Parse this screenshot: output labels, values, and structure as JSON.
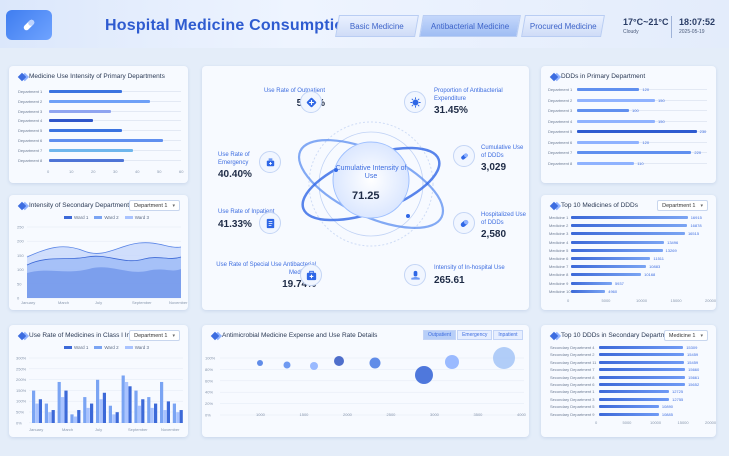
{
  "header": {
    "title": "Hospital Medicine Consumption",
    "tabs": [
      {
        "label": "Basic Medicine"
      },
      {
        "label": "Antibacterial Medicine"
      },
      {
        "label": "Procured Medicine"
      }
    ],
    "weather": {
      "temp": "17°C~21°C",
      "cond": "Cloudy"
    },
    "clock": {
      "time": "18:07:52",
      "date": "2025-05-19"
    }
  },
  "primary": {
    "title": "Medicine Use Intensity of Primary Departments",
    "rows": [
      {
        "label": "Department 1",
        "value": 33
      },
      {
        "label": "Department 2",
        "value": 46
      },
      {
        "label": "Department 3",
        "value": 28
      },
      {
        "label": "Department 4",
        "value": 20
      },
      {
        "label": "Department 5",
        "value": 33
      },
      {
        "label": "Department 6",
        "value": 52
      },
      {
        "label": "Department 7",
        "value": 38
      },
      {
        "label": "Department 8",
        "value": 34
      }
    ],
    "ticks": [
      "0",
      "10",
      "20",
      "30",
      "40",
      "50",
      "60"
    ],
    "colors": [
      "#3a73e0",
      "#6ea0f7",
      "#8fa4f0",
      "#2e55c9",
      "#3a73e0",
      "#5f8fef",
      "#6eb6ec",
      "#4d74d6"
    ]
  },
  "secondary": {
    "title": "Intensity of Secondary Departments",
    "select": "Department 1",
    "legend": [
      "Ward 1",
      "Ward 2",
      "Ward 3"
    ],
    "yticks": [
      "250",
      "200",
      "150",
      "100",
      "50",
      "0"
    ],
    "xticks": [
      "January",
      "March",
      "July",
      "September",
      "November"
    ]
  },
  "classI": {
    "title": "Use Rate of Medicines in Class I Incision",
    "select": "Department 1",
    "legend": [
      "Ward 1",
      "Ward 2",
      "Ward 3"
    ],
    "yticks": [
      "300%",
      "250%",
      "200%",
      "150%",
      "100%",
      "50%",
      "0%"
    ],
    "xticks": [
      "January",
      "March",
      "July",
      "September",
      "November"
    ]
  },
  "antimicrobial": {
    "title": "Antimicrobial Medicine Expense and Use Rate Details",
    "tabs": [
      "Outpatient",
      "Emergency",
      "Inpatient"
    ],
    "yticks": [
      "100%",
      "80%",
      "60%",
      "40%",
      "20%",
      "0%"
    ],
    "xticks": [
      "1000",
      "1500",
      "2000",
      "2500",
      "3000",
      "3500",
      "4000"
    ]
  },
  "ddds": {
    "title": "DDDs in Primary Department",
    "rows": [
      {
        "label": "Department 1",
        "value": 120
      },
      {
        "label": "Department 2",
        "value": 150
      },
      {
        "label": "Department 3",
        "value": 100
      },
      {
        "label": "Department 4",
        "value": 150
      },
      {
        "label": "Department 5",
        "value": 230
      },
      {
        "label": "Department 6",
        "value": 120
      },
      {
        "label": "Department 7",
        "value": 220
      },
      {
        "label": "Department 8",
        "value": 110
      }
    ]
  },
  "top10": {
    "title": "Top 10 Medicines of DDDs",
    "select": "Department 1",
    "rows": [
      {
        "label": "Medicine 1",
        "value": "16915"
      },
      {
        "label": "Medicine 2",
        "value": "16878"
      },
      {
        "label": "Medicine 3",
        "value": "16515"
      },
      {
        "label": "Medicine 4",
        "value": "13496"
      },
      {
        "label": "Medicine 5",
        "value": "13269"
      },
      {
        "label": "Medicine 6",
        "value": "11511"
      },
      {
        "label": "Medicine 7",
        "value": "10883"
      },
      {
        "label": "Medicine 8",
        "value": "10168"
      },
      {
        "label": "Medicine 9",
        "value": "5937"
      },
      {
        "label": "Medicine 10",
        "value": "4960"
      }
    ],
    "ticks": [
      "0",
      "5000",
      "10000",
      "15000",
      "20000"
    ]
  },
  "top10sec": {
    "title": "Top 10 DDDs in Secondary Departments",
    "select": "Medicine 1",
    "rows": [
      {
        "label": "Secondary Department 4",
        "value": "15309"
      },
      {
        "label": "Secondary Department 2",
        "value": "15459"
      },
      {
        "label": "Secondary Department 11",
        "value": "15459"
      },
      {
        "label": "Secondary Department 7",
        "value": "15660"
      },
      {
        "label": "Secondary Department 8",
        "value": "15661"
      },
      {
        "label": "Secondary Department 6",
        "value": "15652"
      },
      {
        "label": "Secondary Department 1",
        "value": "12725"
      },
      {
        "label": "Secondary Department 3",
        "value": "12755"
      },
      {
        "label": "Secondary Department 5",
        "value": "10890"
      },
      {
        "label": "Secondary Department 9",
        "value": "10885"
      }
    ],
    "ticks": [
      "0",
      "5000",
      "10000",
      "15000",
      "20000"
    ]
  },
  "center": {
    "label": "Cumulative Intensity of Use",
    "value": "71.25",
    "kpis": [
      {
        "label": "Use Rate of Outpatient",
        "value": "5.58%"
      },
      {
        "label": "Use Rate of Emergency",
        "value": "40.40%"
      },
      {
        "label": "Use Rate of Inpatient",
        "value": "41.33%"
      },
      {
        "label": "Use Rate of Special Use Antibacterial Medicines",
        "value": "19.74%"
      },
      {
        "label": "Proportion of Antibacterial Expenditure",
        "value": "31.45%"
      },
      {
        "label": "Cumulative Use of DDDs",
        "value": "3,029"
      },
      {
        "label": "Hospitalized Use of DDDs",
        "value": "2,580"
      },
      {
        "label": "Intensity of In-hospital Use",
        "value": "265.61"
      }
    ]
  }
}
